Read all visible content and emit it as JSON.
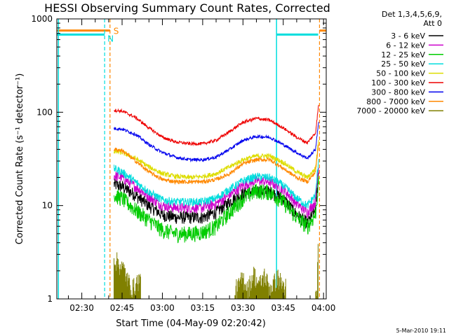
{
  "chart_data": {
    "type": "line",
    "title": "HESSI Observing Summary Count Rates, Corrected",
    "xlabel": "Start Time (04-May-09 02:20:42)",
    "ylabel": "Corrected Count Rate (s⁻¹ detector⁻¹)",
    "y_scale": "log",
    "ylim": [
      1,
      1000
    ],
    "x_tick_labels": [
      "02:30",
      "02:45",
      "03:00",
      "03:15",
      "03:30",
      "03:45",
      "04:00"
    ],
    "y_tick_labels": [
      "1",
      "10",
      "100",
      "1000"
    ],
    "x_tick_minutes": [
      30,
      45,
      60,
      75,
      90,
      105,
      120
    ],
    "xlim_minutes": [
      20.7,
      121
    ],
    "legend_header": [
      "Det 1,3,4,5,6,9,",
      "Att 0"
    ],
    "legend_position": "right",
    "footer_stamp": "5-Mar-2010 19:11",
    "flag_labels": {
      "saa": "S",
      "night": "N"
    },
    "data_window_minutes": [
      41.5,
      118.5
    ],
    "series": [
      {
        "name": "3 - 6 keV",
        "color": "#000000",
        "x": [
          42,
          45,
          50,
          55,
          60,
          65,
          70,
          75,
          80,
          85,
          90,
          95,
          100,
          105,
          110,
          114,
          117,
          118.3
        ],
        "y": [
          17,
          16,
          13,
          10,
          8,
          7.5,
          7.5,
          7.5,
          8.5,
          11,
          13.5,
          14.5,
          14,
          12,
          8,
          6.5,
          9,
          25
        ]
      },
      {
        "name": "6 - 12 keV",
        "color": "#cc00cc",
        "x": [
          42,
          45,
          50,
          55,
          60,
          65,
          70,
          75,
          80,
          85,
          90,
          95,
          100,
          105,
          110,
          114,
          117,
          118.3
        ],
        "y": [
          21,
          20,
          16,
          12.5,
          10,
          9.5,
          9.5,
          9.5,
          10.5,
          13,
          16.5,
          18.5,
          18,
          15,
          10.5,
          8.5,
          11,
          30
        ]
      },
      {
        "name": "12 - 25 keV",
        "color": "#00cc00",
        "x": [
          42,
          45,
          50,
          55,
          60,
          65,
          70,
          75,
          80,
          85,
          90,
          95,
          100,
          105,
          110,
          114,
          117,
          118.3
        ],
        "y": [
          13,
          12,
          9,
          7,
          5.5,
          5,
          5,
          5.2,
          6,
          8.5,
          12,
          14.5,
          14,
          11,
          7.5,
          6,
          8,
          20
        ]
      },
      {
        "name": "25 - 50 keV",
        "color": "#00dddd",
        "x": [
          42,
          45,
          50,
          55,
          60,
          65,
          70,
          75,
          80,
          85,
          90,
          95,
          100,
          105,
          110,
          114,
          117,
          118.3
        ],
        "y": [
          25,
          23,
          18,
          14,
          11.5,
          11,
          11,
          11,
          12,
          15,
          18.5,
          20.5,
          20,
          16.5,
          12,
          10,
          13,
          35
        ]
      },
      {
        "name": "50 - 100 keV",
        "color": "#dddd00",
        "x": [
          42,
          45,
          50,
          55,
          60,
          65,
          70,
          75,
          80,
          85,
          90,
          95,
          100,
          105,
          110,
          114,
          117,
          118.3
        ],
        "y": [
          38,
          37,
          32,
          26,
          22,
          20.5,
          20,
          20.5,
          22,
          26,
          31,
          34,
          34,
          29,
          23,
          20,
          25,
          55
        ]
      },
      {
        "name": "100 - 300 keV",
        "color": "#ee0000",
        "x": [
          42,
          45,
          50,
          55,
          60,
          65,
          70,
          75,
          80,
          85,
          90,
          95,
          100,
          105,
          110,
          114,
          117,
          118.3
        ],
        "y": [
          105,
          103,
          88,
          68,
          54,
          48,
          46,
          46,
          50,
          62,
          78,
          86,
          82,
          68,
          54,
          47,
          60,
          130
        ]
      },
      {
        "name": "300 - 800 keV",
        "color": "#0000ee",
        "x": [
          42,
          45,
          50,
          55,
          60,
          65,
          70,
          75,
          80,
          85,
          90,
          95,
          100,
          105,
          110,
          114,
          117,
          118.3
        ],
        "y": [
          67,
          66,
          58,
          45,
          37,
          33,
          31,
          31,
          33,
          40,
          50,
          55,
          54,
          45,
          37,
          32,
          40,
          85
        ]
      },
      {
        "name": "800 - 7000 keV",
        "color": "#ff8800",
        "x": [
          42,
          45,
          50,
          55,
          60,
          65,
          70,
          75,
          80,
          85,
          90,
          95,
          100,
          105,
          110,
          114,
          117,
          118.3
        ],
        "y": [
          40,
          39,
          30,
          23,
          19,
          18,
          18,
          18,
          19,
          22,
          28,
          31,
          31,
          25,
          20,
          18,
          23,
          50
        ]
      },
      {
        "name": "7000 - 20000 keV",
        "color": "#808000",
        "x": [
          42,
          44,
          46,
          47,
          49,
          51,
          88,
          90,
          92,
          94,
          96,
          98,
          100,
          103,
          105,
          117.5,
          118
        ],
        "y": [
          2.7,
          2.4,
          2.0,
          1.6,
          1.3,
          1.6,
          1.3,
          1.7,
          1.3,
          1.9,
          1.4,
          1.8,
          1.3,
          1.7,
          1.4,
          1.0,
          4
        ]
      }
    ],
    "flags": {
      "saa": {
        "color": "#ff8800",
        "segments": [
          [
            20.7,
            40.5
          ],
          [
            118.5,
            121
          ]
        ],
        "level": 750
      },
      "night": {
        "color": "#00dddd",
        "segments": [
          [
            20.7,
            38.5
          ],
          [
            102.5,
            118
          ]
        ],
        "level": 680
      },
      "saa_lines": [
        40.5,
        118.5
      ],
      "night_lines": [
        38.5,
        102.5
      ],
      "night_start_line": 21.3
    }
  }
}
